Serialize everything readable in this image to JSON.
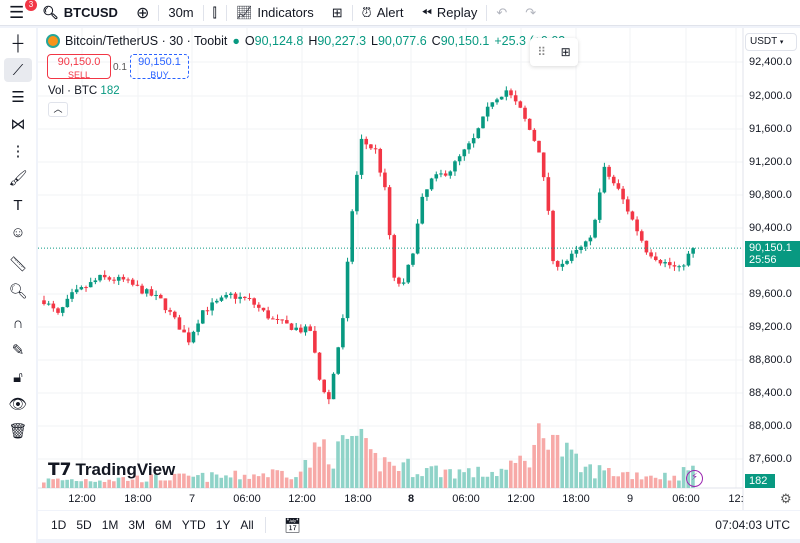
{
  "topbar": {
    "notifications": "3",
    "symbol": "BTCUSD",
    "interval": "30m",
    "indicators": "Indicators",
    "alert": "Alert",
    "replay": "Replay"
  },
  "legend": {
    "title": "Bitcoin/TetherUS · 30 · Toobit",
    "o_label": "O",
    "o": "90,124.8",
    "h_label": "H",
    "h": "90,227.3",
    "l_label": "L",
    "l": "90,077.6",
    "c_label": "C",
    "c": "90,150.1",
    "change": "+25.3 (+0.03"
  },
  "trade": {
    "sell_price": "90,150.0",
    "sell_label": "SELL",
    "spread": "0.1",
    "buy_price": "90,150.1",
    "buy_label": "BUY"
  },
  "volume": {
    "label": "Vol · BTC",
    "value": "182"
  },
  "price_axis": {
    "currency": "USDT",
    "ticks": [
      "92,400.0",
      "92,000.0",
      "91,600.0",
      "91,200.0",
      "90,800.0",
      "90,400.0",
      "89,600.0",
      "89,200.0",
      "88,800.0",
      "88,400.0",
      "88,000.0",
      "87,600.0"
    ],
    "current_price": "90,150.1",
    "countdown": "25:56",
    "volume_tag": "182"
  },
  "time_axis": {
    "ticks": [
      "12:00",
      "18:00",
      "7",
      "06:00",
      "12:00",
      "18:00",
      "8",
      "06:00",
      "12:00",
      "18:00",
      "9",
      "06:00",
      "12:"
    ]
  },
  "bottombar": {
    "ranges": [
      "1D",
      "5D",
      "1M",
      "3M",
      "6M",
      "YTD",
      "1Y",
      "All"
    ],
    "clock": "07:04:03 UTC"
  },
  "watermark": "TradingView",
  "colors": {
    "up": "#089981",
    "down": "#f23645",
    "up_vol": "#8fd3c8",
    "down_vol": "#f7a9a7"
  },
  "chart_data": {
    "type": "candlestick",
    "ylim": [
      87450,
      92650
    ],
    "price_anchors": [
      [
        0,
        89520
      ],
      [
        3,
        89340
      ],
      [
        6,
        89580
      ],
      [
        12,
        89790
      ],
      [
        17,
        89760
      ],
      [
        21,
        89640
      ],
      [
        25,
        89520
      ],
      [
        31,
        89040
      ],
      [
        34,
        89400
      ],
      [
        40,
        89580
      ],
      [
        44,
        89520
      ],
      [
        49,
        89280
      ],
      [
        55,
        89160
      ],
      [
        57,
        89160
      ],
      [
        59,
        88560
      ],
      [
        61,
        88320
      ],
      [
        64,
        89280
      ],
      [
        66,
        90610
      ],
      [
        68,
        91450
      ],
      [
        71,
        91330
      ],
      [
        73,
        90850
      ],
      [
        75,
        89760
      ],
      [
        77,
        89700
      ],
      [
        79,
        90130
      ],
      [
        81,
        90730
      ],
      [
        83,
        90970
      ],
      [
        87,
        91100
      ],
      [
        92,
        91460
      ],
      [
        96,
        91940
      ],
      [
        99,
        92060
      ],
      [
        102,
        91820
      ],
      [
        106,
        91340
      ],
      [
        108,
        90610
      ],
      [
        109,
        89950
      ],
      [
        112,
        90000
      ],
      [
        117,
        90250
      ],
      [
        120,
        91100
      ],
      [
        123,
        90850
      ],
      [
        126,
        90490
      ],
      [
        129,
        90130
      ],
      [
        132,
        90000
      ],
      [
        136,
        89890
      ],
      [
        139,
        90150
      ]
    ],
    "volume_anchors": [
      [
        0,
        8
      ],
      [
        20,
        10
      ],
      [
        40,
        12
      ],
      [
        55,
        18
      ],
      [
        60,
        45
      ],
      [
        63,
        35
      ],
      [
        66,
        55
      ],
      [
        70,
        30
      ],
      [
        75,
        25
      ],
      [
        80,
        20
      ],
      [
        95,
        15
      ],
      [
        100,
        20
      ],
      [
        105,
        40
      ],
      [
        108,
        75
      ],
      [
        110,
        45
      ],
      [
        115,
        20
      ],
      [
        125,
        15
      ],
      [
        135,
        12
      ],
      [
        139,
        20
      ]
    ]
  }
}
